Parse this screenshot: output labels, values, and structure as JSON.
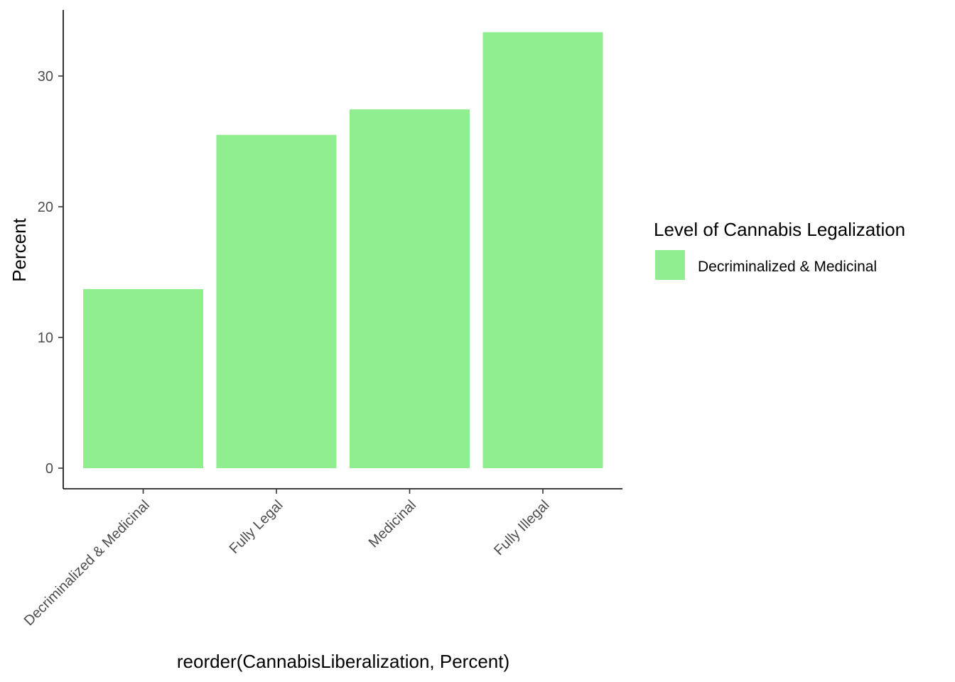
{
  "chart_data": {
    "type": "bar",
    "categories": [
      "Decriminalized & Medicinal",
      "Fully Legal",
      "Medicinal",
      "Fully Illegal"
    ],
    "values": [
      13.7,
      25.5,
      27.45,
      33.35
    ],
    "xlabel": "reorder(CannabisLiberalization, Percent)",
    "ylabel": "Percent",
    "ylim": [
      0,
      35
    ],
    "yticks": [
      0,
      10,
      20,
      30
    ],
    "grid": false,
    "bar_color": "#90EE90",
    "legend": {
      "title": "Level of Cannabis Legalization",
      "position": "right",
      "entries": [
        {
          "label": "Decriminalized & Medicinal",
          "color": "#90EE90"
        }
      ]
    }
  }
}
